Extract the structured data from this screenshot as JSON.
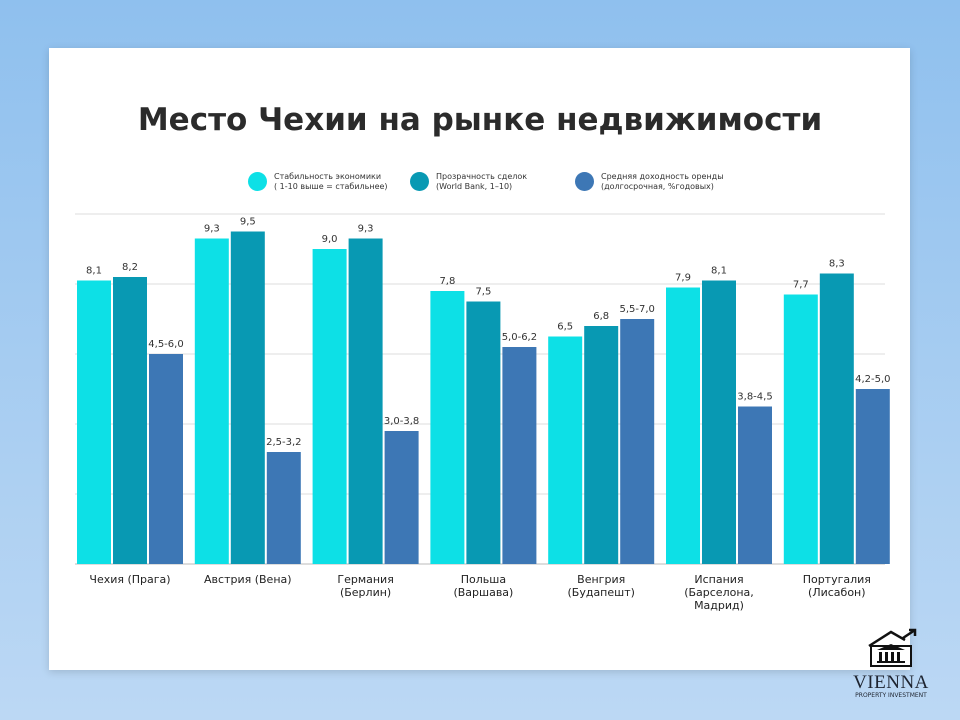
{
  "chart_data": {
    "type": "bar",
    "title": "Место Чехии на рынке недвижимости",
    "categories": [
      "Чехия (Прага)",
      "Австрия (Вена)",
      "Германия\n(Берлин)",
      "Польша\n(Варшава)",
      "Венгрия\n(Будапешт)",
      "Испания\n(Барселона,\nМадрид)",
      "Португалия\n(Лисабон)"
    ],
    "series": [
      {
        "name": "Стабильность экономики\n( 1-10 выше = стабильнее)",
        "color": "#0de0e6",
        "values": [
          8.1,
          9.3,
          9.0,
          7.8,
          6.5,
          7.9,
          7.7
        ],
        "labels": [
          "8,1",
          "9,3",
          "9,0",
          "7,8",
          "6,5",
          "7,9",
          "7,7"
        ]
      },
      {
        "name": "Прозрачность сделок\n(World Bank, 1–10)",
        "color": "#0899b3",
        "values": [
          8.2,
          9.5,
          9.3,
          7.5,
          6.8,
          8.1,
          8.3
        ],
        "labels": [
          "8,2",
          "9,5",
          "9,3",
          "7,5",
          "6,8",
          "8,1",
          "8,3"
        ]
      },
      {
        "name": "Средняя доходность оренды\n(долгосрочная, %годовых)",
        "color": "#3d77b5",
        "values": [
          6.0,
          3.2,
          3.8,
          6.2,
          7.0,
          4.5,
          5.0
        ],
        "labels": [
          "4,5-6,0",
          "2,5-3,2",
          "3,0-3,8",
          "5,0-6,2",
          "5,5-7,0",
          "3,8-4,5",
          "4,2-5,0"
        ]
      }
    ],
    "ylim": [
      0,
      10
    ],
    "grid": true,
    "legend": "top"
  },
  "logo": {
    "name": "VIENNA",
    "sub": "PROPERTY INVESTMENT"
  }
}
